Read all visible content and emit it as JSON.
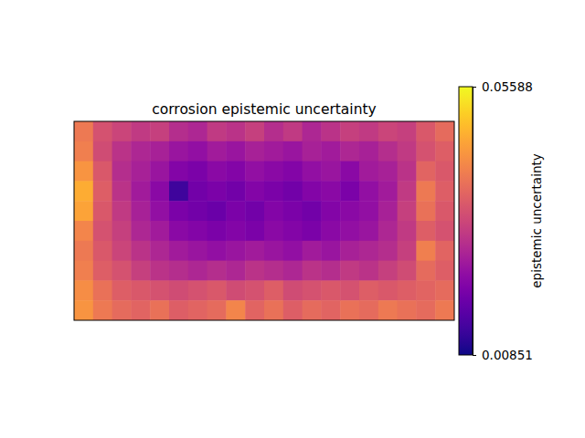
{
  "chart_data": {
    "type": "heatmap",
    "title": "corrosion epistemic uncertainty",
    "tick_labels": false,
    "cells": [
      [
        0.04,
        0.034,
        0.032,
        0.03,
        0.031,
        0.028,
        0.027,
        0.03,
        0.029,
        0.031,
        0.028,
        0.03,
        0.027,
        0.029,
        0.031,
        0.03,
        0.032,
        0.031,
        0.035,
        0.038
      ],
      [
        0.041,
        0.033,
        0.029,
        0.027,
        0.026,
        0.024,
        0.023,
        0.025,
        0.024,
        0.026,
        0.025,
        0.024,
        0.026,
        0.025,
        0.027,
        0.026,
        0.028,
        0.03,
        0.034,
        0.036
      ],
      [
        0.044,
        0.035,
        0.028,
        0.026,
        0.024,
        0.021,
        0.02,
        0.022,
        0.021,
        0.023,
        0.022,
        0.021,
        0.023,
        0.024,
        0.022,
        0.025,
        0.026,
        0.029,
        0.037,
        0.035
      ],
      [
        0.047,
        0.036,
        0.029,
        0.025,
        0.022,
        0.013,
        0.019,
        0.02,
        0.019,
        0.021,
        0.02,
        0.019,
        0.021,
        0.022,
        0.02,
        0.023,
        0.025,
        0.03,
        0.04,
        0.036
      ],
      [
        0.046,
        0.035,
        0.03,
        0.026,
        0.023,
        0.02,
        0.019,
        0.018,
        0.02,
        0.019,
        0.021,
        0.02,
        0.019,
        0.021,
        0.022,
        0.023,
        0.026,
        0.031,
        0.039,
        0.035
      ],
      [
        0.042,
        0.034,
        0.031,
        0.027,
        0.025,
        0.022,
        0.021,
        0.02,
        0.021,
        0.02,
        0.022,
        0.021,
        0.02,
        0.022,
        0.023,
        0.024,
        0.027,
        0.03,
        0.036,
        0.034
      ],
      [
        0.04,
        0.035,
        0.032,
        0.029,
        0.027,
        0.025,
        0.024,
        0.023,
        0.024,
        0.025,
        0.024,
        0.023,
        0.025,
        0.024,
        0.026,
        0.027,
        0.028,
        0.031,
        0.041,
        0.037
      ],
      [
        0.041,
        0.036,
        0.034,
        0.031,
        0.029,
        0.028,
        0.027,
        0.028,
        0.027,
        0.029,
        0.028,
        0.027,
        0.029,
        0.028,
        0.03,
        0.029,
        0.031,
        0.033,
        0.038,
        0.036
      ],
      [
        0.043,
        0.039,
        0.036,
        0.035,
        0.034,
        0.033,
        0.034,
        0.035,
        0.033,
        0.034,
        0.036,
        0.033,
        0.034,
        0.035,
        0.034,
        0.036,
        0.035,
        0.036,
        0.037,
        0.038
      ],
      [
        0.044,
        0.04,
        0.038,
        0.037,
        0.039,
        0.036,
        0.037,
        0.038,
        0.042,
        0.037,
        0.039,
        0.036,
        0.038,
        0.037,
        0.039,
        0.038,
        0.04,
        0.039,
        0.038,
        0.04
      ]
    ],
    "colorbar": {
      "label": "epistemic uncertainty",
      "range": [
        0.00851,
        0.05588
      ],
      "ticks": [
        0.00851,
        0.05588
      ]
    }
  }
}
